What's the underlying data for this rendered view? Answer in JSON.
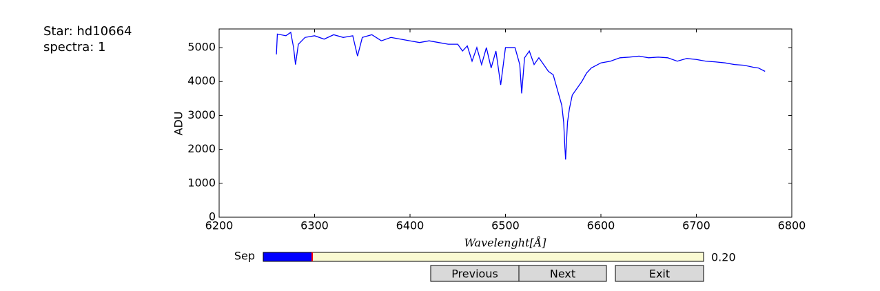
{
  "header": {
    "star": "Star: hd10664",
    "spectra": "spectra: 1"
  },
  "chart_data": {
    "type": "line",
    "xlabel": "Wavelenght[Å]",
    "ylabel": "ADU",
    "x": [
      6260,
      6261,
      6270,
      6275,
      6278,
      6280,
      6283,
      6290,
      6300,
      6310,
      6320,
      6330,
      6340,
      6345,
      6350,
      6360,
      6370,
      6380,
      6390,
      6400,
      6410,
      6420,
      6430,
      6440,
      6450,
      6455,
      6460,
      6465,
      6470,
      6475,
      6480,
      6485,
      6490,
      6495,
      6500,
      6510,
      6515,
      6517,
      6520,
      6525,
      6530,
      6535,
      6540,
      6545,
      6550,
      6553,
      6556,
      6559,
      6561,
      6562,
      6563,
      6565,
      6567,
      6570,
      6575,
      6580,
      6585,
      6590,
      6600,
      6610,
      6620,
      6630,
      6640,
      6650,
      6660,
      6670,
      6680,
      6690,
      6700,
      6710,
      6720,
      6730,
      6740,
      6750,
      6760,
      6765,
      6772
    ],
    "series": [
      {
        "color": "#0000ff",
        "values": [
          4800,
          5400,
          5350,
          5450,
          5000,
          4500,
          5100,
          5300,
          5350,
          5250,
          5380,
          5300,
          5350,
          4750,
          5300,
          5380,
          5200,
          5300,
          5250,
          5200,
          5150,
          5200,
          5150,
          5100,
          5100,
          4900,
          5050,
          4600,
          5000,
          4500,
          5000,
          4400,
          4900,
          3900,
          5000,
          5000,
          4500,
          3650,
          4700,
          4900,
          4500,
          4700,
          4500,
          4300,
          4200,
          3900,
          3600,
          3300,
          2800,
          2200,
          1700,
          2800,
          3200,
          3600,
          3800,
          4000,
          4250,
          4400,
          4550,
          4600,
          4700,
          4720,
          4750,
          4700,
          4720,
          4700,
          4600,
          4680,
          4650,
          4600,
          4580,
          4550,
          4500,
          4480,
          4420,
          4400,
          4300
        ]
      }
    ],
    "xlim": [
      6200,
      6800
    ],
    "xticks": [
      6200,
      6300,
      6400,
      6500,
      6600,
      6700,
      6800
    ],
    "ylim": [
      0,
      5550
    ],
    "yticks": [
      0,
      1000,
      2000,
      3000,
      4000,
      5000
    ]
  },
  "slider": {
    "label": "Sep",
    "value": 0.2,
    "value_label": "0.20",
    "min": 0,
    "max": 1.8,
    "color": "#0000ff"
  },
  "buttons": [
    "Previous",
    "Next",
    "Exit"
  ]
}
